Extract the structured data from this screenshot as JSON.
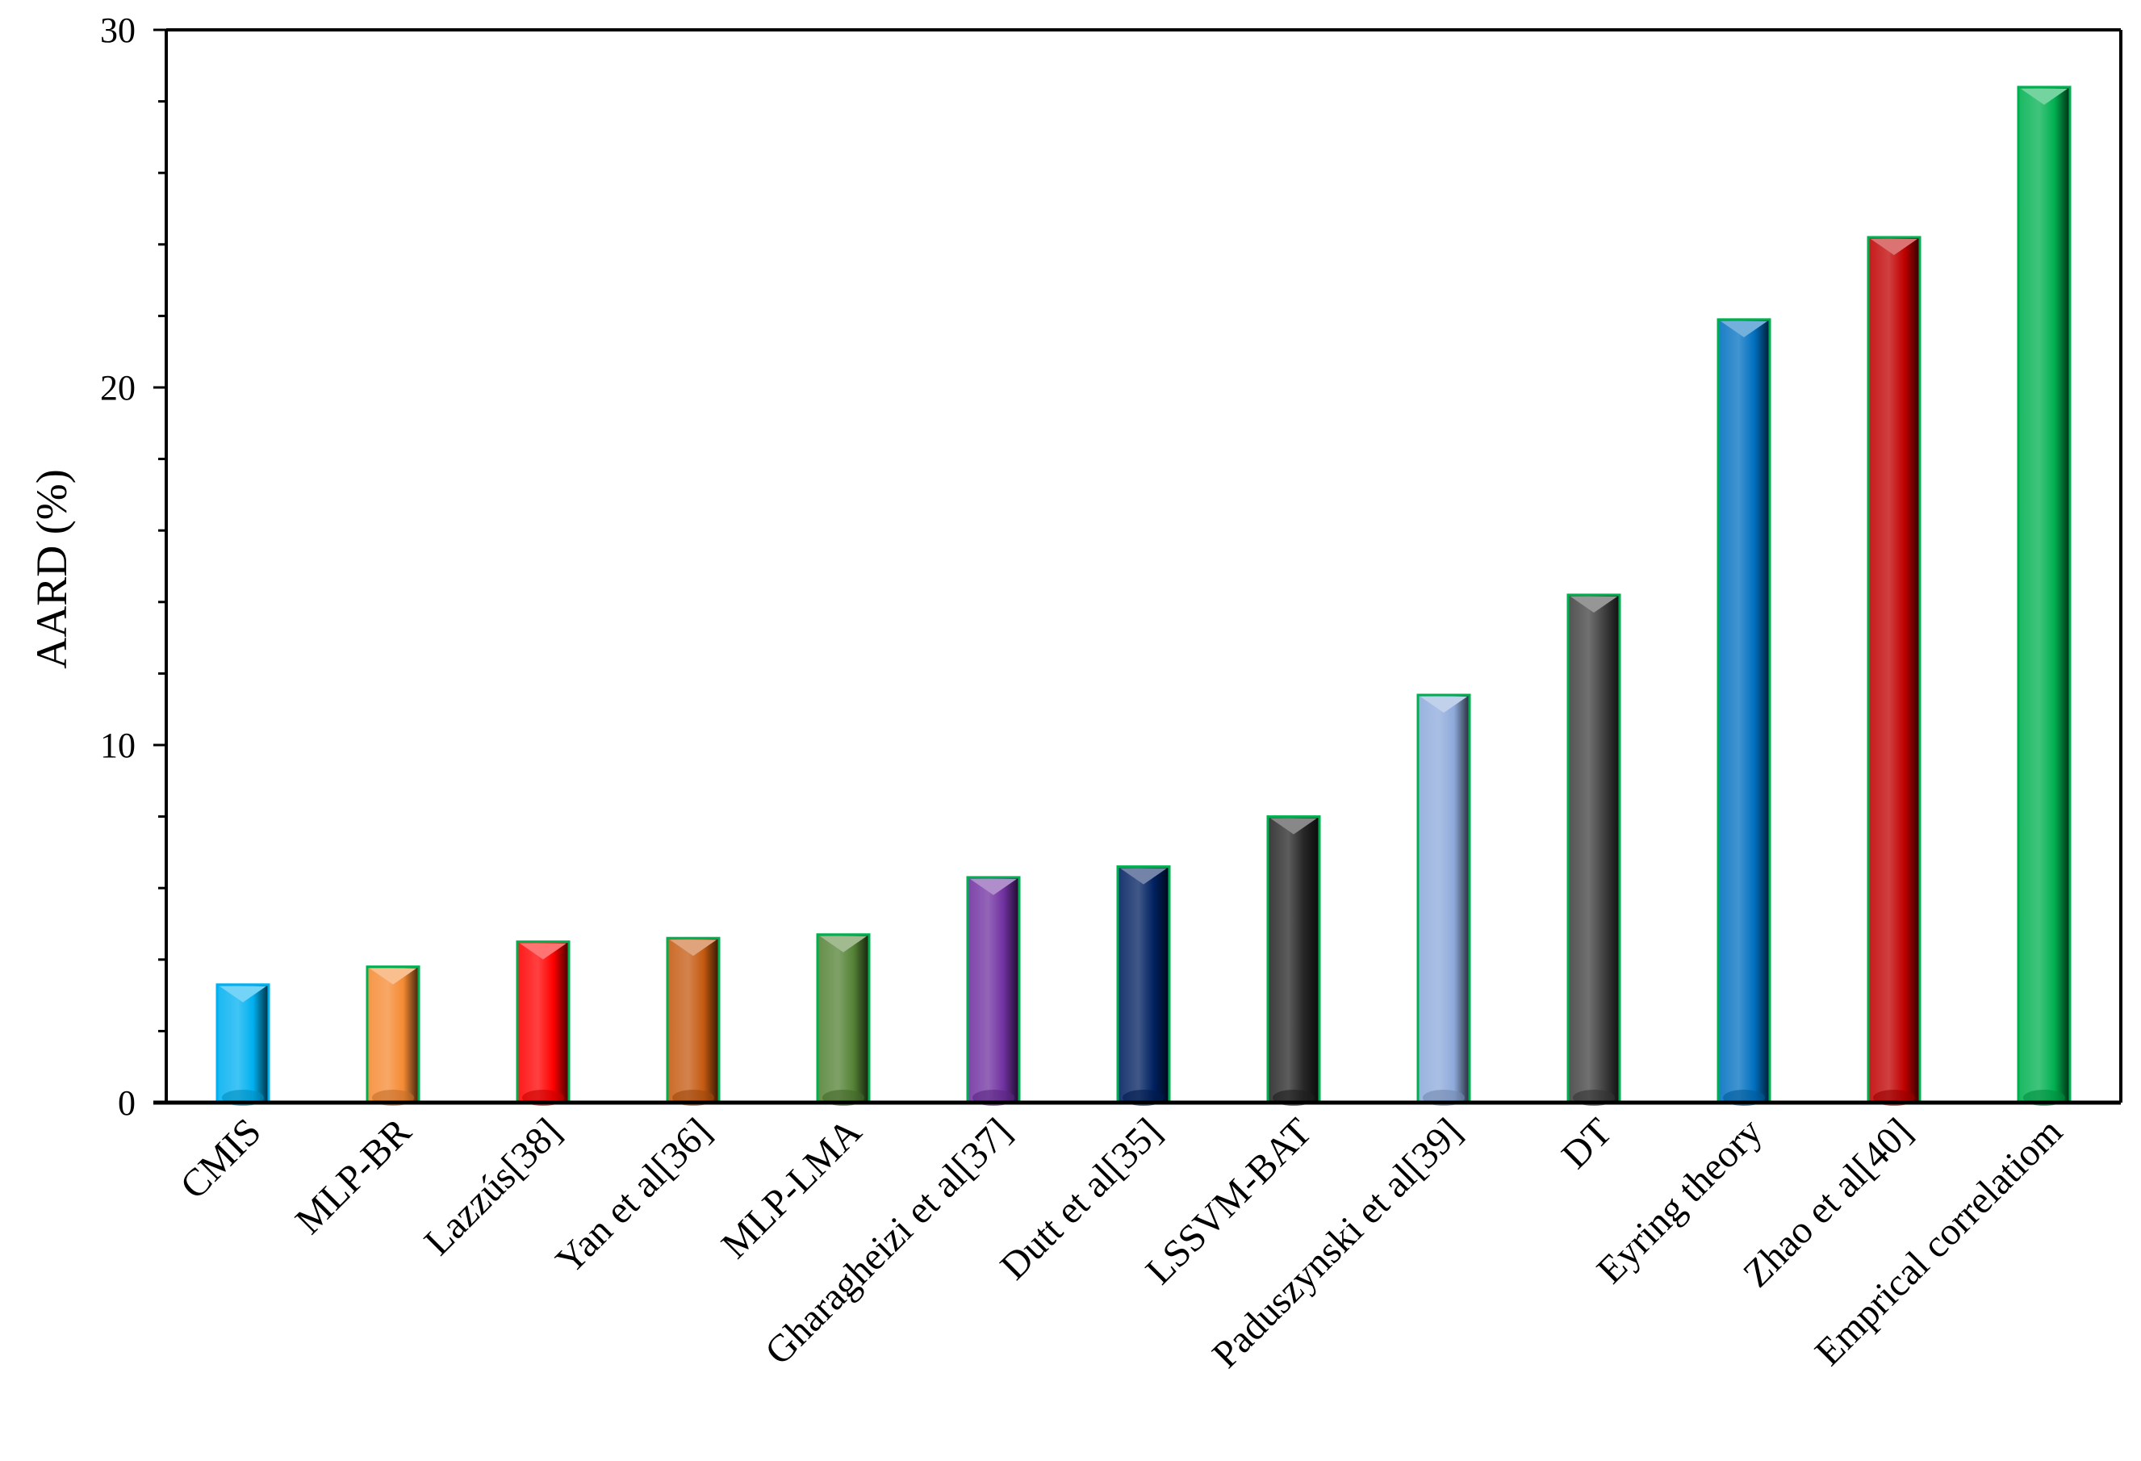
{
  "chart_data": {
    "type": "bar",
    "title": "",
    "xlabel": "",
    "ylabel": "AARD (%)",
    "ylim": [
      0,
      30
    ],
    "yticks": [
      "0",
      "10",
      "20",
      "30"
    ],
    "minor_tick_step": 2,
    "grid": false,
    "legend": "none",
    "categories": [
      "CMIS",
      "MLP-BR",
      "Lazzús[38]",
      "Yan et al[36]",
      "MLP-LMA",
      "Gharagheizi et al[37]",
      "Dutt et al[35]",
      "LSSVM-BAT",
      "Paduszynski et al[39]",
      "DT",
      "Eyring theory",
      "Zhao et al[40]",
      "Emprical correlatiom"
    ],
    "values": [
      3.3,
      3.8,
      4.5,
      4.6,
      4.7,
      6.3,
      6.6,
      8.0,
      11.4,
      14.2,
      21.9,
      24.2,
      28.4
    ],
    "colors": [
      "#00b0f0",
      "#f58a33",
      "#ff0000",
      "#c55a11",
      "#548235",
      "#7030a0",
      "#002060",
      "#262626",
      "#8eaadb",
      "#404040",
      "#0070c0",
      "#c00000",
      "#00b050"
    ],
    "bar_outline_color": "#00b050"
  }
}
